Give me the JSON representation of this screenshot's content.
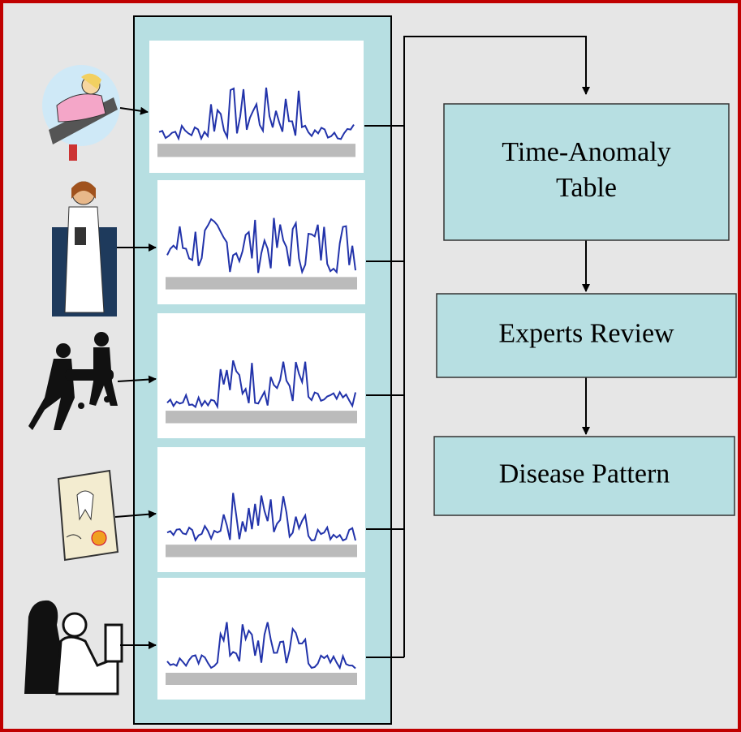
{
  "boxes": [
    {
      "lines": [
        "Time-Anomaly",
        "Table"
      ]
    },
    {
      "lines": [
        "Experts Review"
      ]
    },
    {
      "lines": [
        "Disease Pattern"
      ]
    }
  ]
}
